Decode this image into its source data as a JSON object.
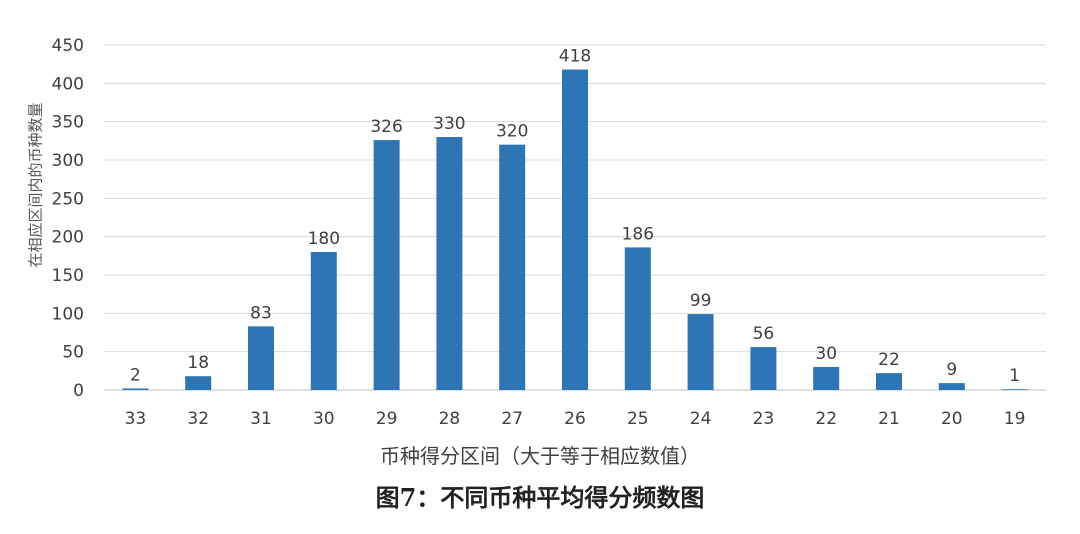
{
  "chart_data": {
    "type": "bar",
    "categories": [
      "33",
      "32",
      "31",
      "30",
      "29",
      "28",
      "27",
      "26",
      "25",
      "24",
      "23",
      "22",
      "21",
      "20",
      "19"
    ],
    "values": [
      2,
      18,
      83,
      180,
      326,
      330,
      320,
      418,
      186,
      99,
      56,
      30,
      22,
      9,
      1
    ],
    "ylim": [
      0,
      450
    ],
    "yticks": [
      0,
      50,
      100,
      150,
      200,
      250,
      300,
      350,
      400,
      450
    ],
    "ylabel": "在相应区间内的币种数量",
    "xlabel": "币种得分区间（大于等于相应数值）",
    "grid": true,
    "data_labels": true,
    "bar_color": "#2e75b6"
  },
  "caption": "图7：不同币种平均得分频数图"
}
